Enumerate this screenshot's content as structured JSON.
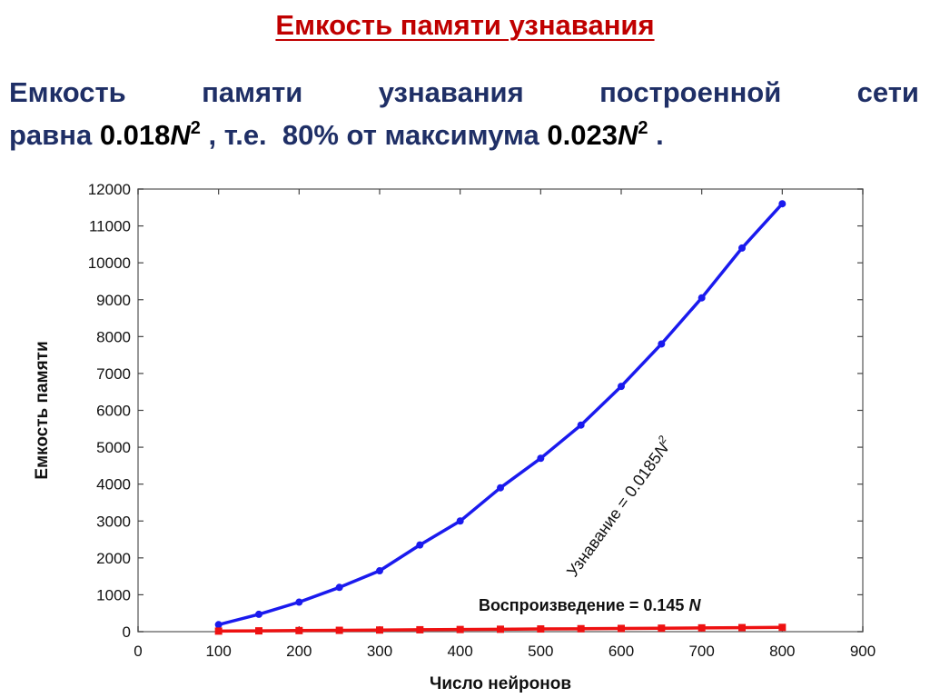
{
  "slide": {
    "title": "Емкость памяти узнавания",
    "line1_words": [
      "Емкость",
      "памяти",
      "узнавания",
      "построенной",
      "сети"
    ],
    "line2": {
      "t1": "равна ",
      "v1": "0.018",
      "n1": "N",
      "p1": "2",
      "t2": " , т.е.  80% от максимума ",
      "v2": "0.023",
      "n2": "N",
      "p2": "2",
      "t3": " ."
    }
  },
  "chart_data": {
    "type": "line",
    "xlabel": "Число нейронов",
    "ylabel": "Емкость памяти",
    "xlim": [
      0,
      900
    ],
    "ylim": [
      0,
      12000
    ],
    "xticks": [
      0,
      100,
      200,
      300,
      400,
      500,
      600,
      700,
      800,
      900
    ],
    "yticks": [
      0,
      1000,
      2000,
      3000,
      4000,
      5000,
      6000,
      7000,
      8000,
      9000,
      10000,
      11000,
      12000
    ],
    "grid": false,
    "series": [
      {
        "annotation": "Узнавание = 0.0185",
        "annotation_var": "N",
        "annotation_power": "2",
        "color": "#1a1aee",
        "x": [
          100,
          150,
          200,
          250,
          300,
          350,
          400,
          450,
          500,
          550,
          600,
          650,
          700,
          750,
          800
        ],
        "y": [
          190,
          470,
          800,
          1200,
          1650,
          2350,
          3000,
          3900,
          4700,
          5600,
          6650,
          7800,
          9050,
          10400,
          11600
        ]
      },
      {
        "annotation": "Воспроизведение = 0.145",
        "annotation_var": "N",
        "color": "#ee1111",
        "x": [
          100,
          150,
          200,
          250,
          300,
          350,
          400,
          450,
          500,
          550,
          600,
          650,
          700,
          750,
          800
        ],
        "y": [
          15,
          22,
          29,
          36,
          44,
          51,
          58,
          65,
          73,
          80,
          87,
          94,
          102,
          109,
          116
        ]
      }
    ]
  }
}
